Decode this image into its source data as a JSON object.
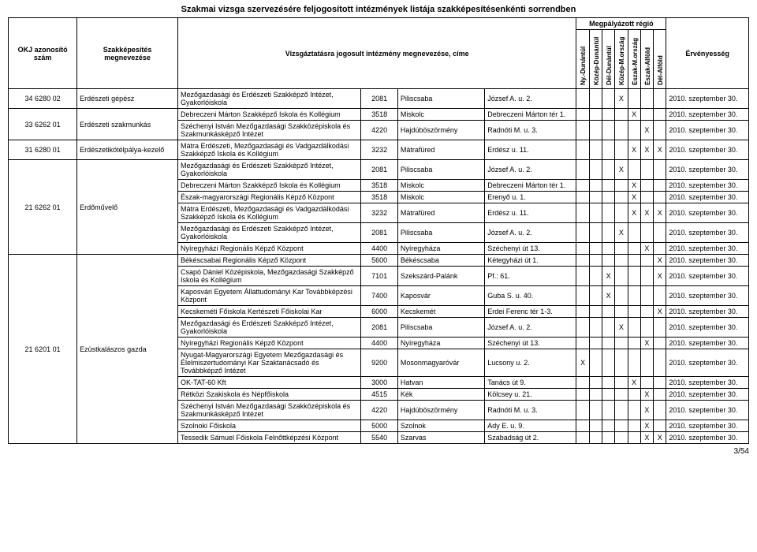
{
  "page": {
    "title": "Szakmai vizsga szervezésére feljogosított intézmények listája szakképesítésenkénti sorrendben",
    "footer": "3/54"
  },
  "header": {
    "okj": "OKJ azonosító szám",
    "szak": "Szakképesítés megnevezése",
    "inst": "Vizsgáztatásra jogosult intézmény megnevezése, címe",
    "region_group": "Megpályázott régió",
    "regions": [
      "Ny.-Dunántúl",
      "Közép-Dunántúl",
      "Dél-Dunántúl",
      "Közép-M.ország",
      "Észak-M.ország",
      "Észak-Alföld",
      "Dél-Alföld"
    ],
    "valid": "Érvényesség"
  },
  "colors": {
    "text": "#000000",
    "border": "#000000",
    "bg": "#ffffff"
  },
  "groups": [
    {
      "okj": "34 6280 02",
      "szak": "Erdészeti gépész",
      "rows": [
        {
          "inst": "Mezőgazdasági és Erdészeti Szakképző Intézet, Gyakorlóiskola",
          "zip": "2081",
          "city": "Piliscsaba",
          "addr": "József A. u. 2.",
          "reg": [
            "",
            "",
            "",
            "X",
            "",
            "",
            ""
          ],
          "valid": "2010. szeptember 30."
        }
      ]
    },
    {
      "okj": "33 6262 01",
      "szak": "Erdészeti szakmunkás",
      "rows": [
        {
          "inst": "Debreczeni Márton Szakképző Iskola és Kollégium",
          "zip": "3518",
          "city": "Miskolc",
          "addr": "Debreczeni Márton tér 1.",
          "reg": [
            "",
            "",
            "",
            "",
            "X",
            "",
            ""
          ],
          "valid": "2010. szeptember 30."
        },
        {
          "inst": "Széchenyi István Mezőgazdasági Szakközépiskola és Szakmunkásképző Intézet",
          "zip": "4220",
          "city": "Hajdúböszörmény",
          "addr": "Radnóti M. u. 3.",
          "reg": [
            "",
            "",
            "",
            "",
            "",
            "X",
            ""
          ],
          "valid": "2010. szeptember 30."
        }
      ]
    },
    {
      "okj": "31 6280 01",
      "szak": "Erdészetikötélpálya-kezelő",
      "rows": [
        {
          "inst": "Mátra Erdészeti, Mezőgazdasági és Vadgazdálkodási Szakképző Iskola és Kollégium",
          "zip": "3232",
          "city": "Mátrafüred",
          "addr": "Erdész u. 11.",
          "reg": [
            "",
            "",
            "",
            "",
            "X",
            "X",
            "X"
          ],
          "valid": "2010. szeptember 30."
        }
      ]
    },
    {
      "okj": "21 6262 01",
      "szak": "Erdőművelő",
      "rows": [
        {
          "inst": "Mezőgazdasági és Erdészeti Szakképző Intézet, Gyakorlóiskola",
          "zip": "2081",
          "city": "Piliscsaba",
          "addr": "József A. u. 2.",
          "reg": [
            "",
            "",
            "",
            "X",
            "",
            "",
            ""
          ],
          "valid": "2010. szeptember 30."
        },
        {
          "inst": "Debreczeni Márton Szakképző Iskola és Kollégium",
          "zip": "3518",
          "city": "Miskolc",
          "addr": "Debreczeni Márton tér 1.",
          "reg": [
            "",
            "",
            "",
            "",
            "X",
            "",
            ""
          ],
          "valid": "2010. szeptember 30."
        },
        {
          "inst": "Észak-magyarországi Regionális Képző Központ",
          "zip": "3518",
          "city": "Miskolc",
          "addr": "Erenyő u. 1.",
          "reg": [
            "",
            "",
            "",
            "",
            "X",
            "",
            ""
          ],
          "valid": "2010. szeptember 30."
        },
        {
          "inst": "Mátra Erdészeti, Mezőgazdasági és Vadgazdálkodási Szakképző Iskola és Kollégium",
          "zip": "3232",
          "city": "Mátrafüred",
          "addr": "Erdész u. 11.",
          "reg": [
            "",
            "",
            "",
            "",
            "X",
            "X",
            "X"
          ],
          "valid": "2010. szeptember 30."
        },
        {
          "inst": "Mezőgazdasági és Erdészeti Szakképző Intézet, Gyakorlóiskola",
          "zip": "2081",
          "city": "Piliscsaba",
          "addr": "József A. u. 2.",
          "reg": [
            "",
            "",
            "",
            "X",
            "",
            "",
            ""
          ],
          "valid": "2010. szeptember 30."
        },
        {
          "inst": "Nyíregyházi Regionális Képző Központ",
          "zip": "4400",
          "city": "Nyíregyháza",
          "addr": "Széchenyi út 13.",
          "reg": [
            "",
            "",
            "",
            "",
            "",
            "X",
            ""
          ],
          "valid": "2010. szeptember 30."
        }
      ]
    },
    {
      "okj": "21 6201 01",
      "szak": "Ezüstkalászos gazda",
      "rows": [
        {
          "inst": "Békéscsabai Regionális Képző Központ",
          "zip": "5600",
          "city": "Békéscsaba",
          "addr": "Kétegyházi út 1.",
          "reg": [
            "",
            "",
            "",
            "",
            "",
            "",
            "X"
          ],
          "valid": "2010. szeptember 30."
        },
        {
          "inst": "Csapó Dániel Középiskola, Mezőgazdasági Szakképző Iskola és Kollégium",
          "zip": "7101",
          "city": "Szekszárd-Palánk",
          "addr": "Pf.: 61.",
          "reg": [
            "",
            "",
            "X",
            "",
            "",
            "",
            "X"
          ],
          "valid": "2010. szeptember 30."
        },
        {
          "inst": "Kaposvári Egyetem Állattudományi Kar Továbbképzési Központ",
          "zip": "7400",
          "city": "Kaposvár",
          "addr": "Guba S. u. 40.",
          "reg": [
            "",
            "",
            "X",
            "",
            "",
            "",
            ""
          ],
          "valid": "2010. szeptember 30."
        },
        {
          "inst": "Kecskeméti Főiskola Kertészeti Főiskolai Kar",
          "zip": "6000",
          "city": "Kecskemét",
          "addr": "Erdei Ferenc tér 1-3.",
          "reg": [
            "",
            "",
            "",
            "",
            "",
            "",
            "X"
          ],
          "valid": "2010. szeptember 30."
        },
        {
          "inst": "Mezőgazdasági és Erdészeti Szakképző Intézet, Gyakorlóiskola",
          "zip": "2081",
          "city": "Piliscsaba",
          "addr": "József A. u. 2.",
          "reg": [
            "",
            "",
            "",
            "X",
            "",
            "",
            ""
          ],
          "valid": "2010. szeptember 30."
        },
        {
          "inst": "Nyíregyházi Regionális Képző Központ",
          "zip": "4400",
          "city": "Nyíregyháza",
          "addr": "Széchenyi út 13.",
          "reg": [
            "",
            "",
            "",
            "",
            "",
            "X",
            ""
          ],
          "valid": "2010. szeptember 30."
        },
        {
          "inst": "Nyugat-Magyarországi Egyetem Mezőgazdasági és Élelmiszertudományi Kar Szaktanácsadó és Továbbképző Intézet",
          "zip": "9200",
          "city": "Mosonmagyaróvár",
          "addr": "Lucsony u. 2.",
          "reg": [
            "X",
            "",
            "",
            "",
            "",
            "",
            ""
          ],
          "valid": "2010. szeptember 30."
        },
        {
          "inst": "OK-TAT-60 Kft",
          "zip": "3000",
          "city": "Hatvan",
          "addr": "Tanács út 9.",
          "reg": [
            "",
            "",
            "",
            "",
            "X",
            "",
            ""
          ],
          "valid": "2010. szeptember 30."
        },
        {
          "inst": "Rétközi Szakiskola és Népfőiskola",
          "zip": "4515",
          "city": "Kék",
          "addr": "Kölcsey u. 21.",
          "reg": [
            "",
            "",
            "",
            "",
            "",
            "X",
            ""
          ],
          "valid": "2010. szeptember 30."
        },
        {
          "inst": "Széchenyi István Mezőgazdasági Szakközépiskola és Szakmunkásképző Intézet",
          "zip": "4220",
          "city": "Hajdúböszörmény",
          "addr": "Radnóti M. u. 3.",
          "reg": [
            "",
            "",
            "",
            "",
            "",
            "X",
            ""
          ],
          "valid": "2010. szeptember 30."
        },
        {
          "inst": "Szolnoki Főiskola",
          "zip": "5000",
          "city": "Szolnok",
          "addr": "Ady E. u. 9.",
          "reg": [
            "",
            "",
            "",
            "",
            "",
            "X",
            ""
          ],
          "valid": "2010. szeptember 30."
        },
        {
          "inst": "Tessedik Sámuel Főiskola Felnőttképzési Központ",
          "zip": "5540",
          "city": "Szarvas",
          "addr": "Szabadság út 2.",
          "reg": [
            "",
            "",
            "",
            "",
            "",
            "X",
            "X"
          ],
          "valid": "2010. szeptember 30."
        }
      ]
    }
  ]
}
